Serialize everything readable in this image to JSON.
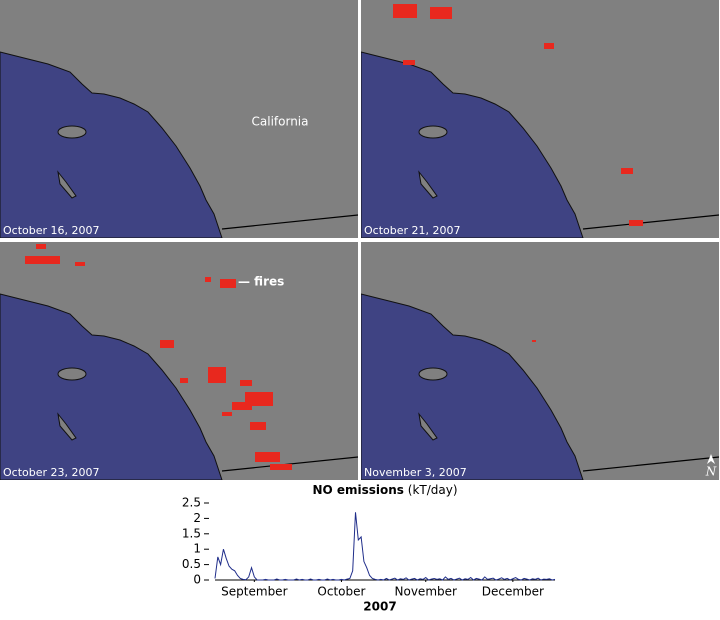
{
  "panels": [
    {
      "date": "October 16, 2007"
    },
    {
      "date": "October 21, 2007"
    },
    {
      "date": "October 23, 2007"
    },
    {
      "date": "November 3, 2007"
    }
  ],
  "labels": {
    "california": "California",
    "fires": "— fires",
    "north": "N"
  },
  "chart_data": {
    "type": "line",
    "title": "NO emissions",
    "title_unit": "(kT/day)",
    "xlabel": "2007",
    "x": [
      1,
      2,
      3,
      4,
      5,
      6,
      7,
      8,
      9,
      10,
      11,
      12,
      13,
      14,
      15,
      16,
      17,
      18,
      19,
      20,
      21,
      22,
      23,
      24,
      25,
      26,
      27,
      28,
      29,
      30,
      31,
      32,
      33,
      34,
      35,
      36,
      37,
      38,
      39,
      40,
      41,
      42,
      43,
      44,
      45,
      46,
      47,
      48,
      49,
      50,
      51,
      52,
      53,
      54,
      55,
      56,
      57,
      58,
      59,
      60,
      61,
      62,
      63,
      64,
      65,
      66,
      67,
      68,
      69,
      70,
      71,
      72,
      73,
      74,
      75,
      76,
      77,
      78,
      79,
      80,
      81,
      82,
      83,
      84,
      85,
      86,
      87,
      88,
      89,
      90,
      91,
      92,
      93,
      94,
      95,
      96,
      97,
      98,
      99,
      100,
      101,
      102,
      103,
      104,
      105,
      106,
      107,
      108,
      109,
      110,
      111,
      112,
      113,
      114,
      115,
      116,
      117,
      118,
      119,
      120,
      121,
      122
    ],
    "series": [
      {
        "name": "NO emissions",
        "color": "#1f2d8a",
        "values": [
          0.05,
          0.75,
          0.5,
          1,
          0.7,
          0.45,
          0.35,
          0.3,
          0.15,
          0.05,
          0.02,
          0.01,
          0.1,
          0.4,
          0.1,
          0,
          0,
          0,
          0.02,
          0,
          0,
          0,
          0.03,
          0,
          0,
          0.02,
          0,
          0,
          0,
          0.03,
          0,
          0.02,
          0,
          0,
          0.03,
          0,
          0,
          0.02,
          0,
          0,
          0.03,
          0,
          0.02,
          0,
          0,
          0.02,
          0,
          0.03,
          0.05,
          0.3,
          2.2,
          1.3,
          1.4,
          0.6,
          0.4,
          0.15,
          0.05,
          0.02,
          0,
          0.02,
          0,
          0.05,
          0,
          0.03,
          0.06,
          0,
          0.04,
          0.02,
          0.07,
          0,
          0.03,
          0.05,
          0,
          0.04,
          0.02,
          0.08,
          0,
          0.03,
          0.05,
          0.02,
          0.04,
          0,
          0.1,
          0.02,
          0.05,
          0,
          0.03,
          0.06,
          0,
          0.04,
          0.02,
          0.08,
          0,
          0.05,
          0.03,
          0,
          0.1,
          0.02,
          0.04,
          0.06,
          0,
          0.03,
          0.07,
          0.02,
          0.05,
          0,
          0.04,
          0.08,
          0.02,
          0,
          0.05,
          0.03,
          0,
          0.04,
          0.02,
          0.06,
          0,
          0.03,
          0.02,
          0.04,
          0,
          0.02
        ]
      }
    ],
    "xlim": [
      1,
      122
    ],
    "xticks": [
      {
        "value": 15,
        "label": "September"
      },
      {
        "value": 46,
        "label": "October"
      },
      {
        "value": 76,
        "label": "November"
      },
      {
        "value": 107,
        "label": "December"
      }
    ],
    "ylim": [
      0,
      2.5
    ],
    "yticks": [
      0,
      0.5,
      1,
      1.5,
      2,
      2.5
    ]
  }
}
